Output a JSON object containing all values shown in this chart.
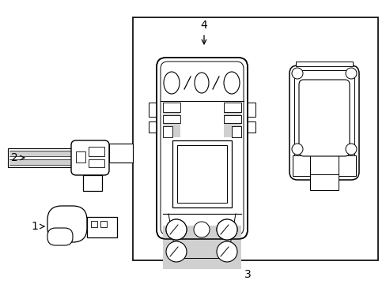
{
  "background_color": "#ffffff",
  "line_color": "#000000",
  "gray_fill": "#d0d0d0",
  "fig_width": 4.89,
  "fig_height": 3.6,
  "dpi": 100
}
